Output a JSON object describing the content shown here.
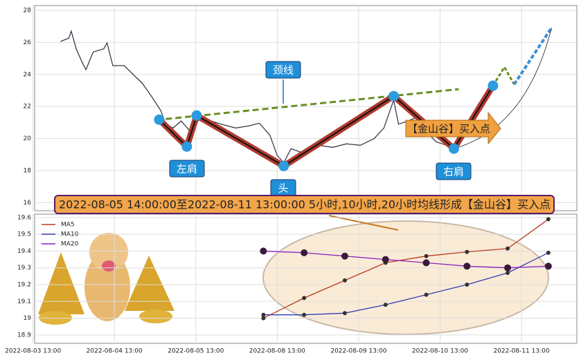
{
  "chart_data": [
    {
      "type": "line",
      "ylim": [
        15.5,
        28.3
      ],
      "yticks": [
        16,
        18,
        20,
        22,
        24,
        26,
        28
      ],
      "xlim": [
        0.02,
        6.68
      ],
      "xticks": [
        0,
        1,
        2,
        3,
        4,
        5,
        6
      ],
      "grid": true,
      "series": [
        {
          "color": "#3a3a4a",
          "x": [
            0.34,
            0.44,
            0.47,
            0.53,
            0.6,
            0.65,
            0.74,
            0.87,
            0.91,
            0.98,
            1.12,
            1.25,
            1.34,
            1.46,
            1.57,
            1.63,
            1.72,
            1.82,
            1.93,
            2.06,
            2.19,
            2.31,
            2.49,
            2.66,
            2.78,
            2.91,
            3.0,
            3.08,
            3.17,
            3.34,
            3.51,
            3.68,
            3.85,
            4.02,
            4.19,
            4.31,
            4.43,
            4.49,
            4.61,
            4.7,
            4.83,
            4.95,
            5.08,
            5.17,
            5.25
          ],
          "values": [
            26.06,
            26.27,
            26.7,
            25.6,
            24.8,
            24.3,
            25.4,
            25.6,
            25.97,
            24.55,
            24.55,
            23.9,
            23.47,
            22.6,
            21.74,
            20.9,
            20.66,
            21.1,
            20.45,
            21.3,
            21.1,
            20.9,
            20.66,
            20.8,
            20.96,
            20.2,
            18.94,
            18.5,
            19.37,
            19.06,
            19.58,
            19.45,
            19.67,
            19.58,
            20.0,
            20.66,
            22.4,
            20.9,
            21.1,
            21.3,
            20.45,
            19.8,
            19.58,
            19.37,
            20.45
          ]
        }
      ],
      "pattern": {
        "x": [
          1.55,
          1.89,
          2.01,
          3.08,
          4.43,
          5.17,
          5.65
        ],
        "values": [
          21.18,
          19.5,
          21.44,
          18.29,
          22.65,
          19.37,
          23.3
        ]
      },
      "neckline": {
        "x": [
          1.63,
          5.23
        ],
        "values": [
          21.22,
          23.08
        ]
      },
      "projection": {
        "x": [
          5.65,
          5.79,
          5.91,
          6.37
        ],
        "values": [
          23.3,
          24.46,
          23.38,
          26.92
        ]
      },
      "annotations": [
        "颈线",
        "左肩",
        "头",
        "右肩",
        "【金山谷】买入点"
      ],
      "banner": "2022-08-05 14:00:00至2022-08-11 13:00:00 5小时,10小时,20小时均线形成【金山谷】买入点"
    },
    {
      "type": "line",
      "ylim": [
        18.85,
        19.62
      ],
      "yticks": [
        18.9,
        19.0,
        19.1,
        19.2,
        19.3,
        19.4,
        19.5,
        19.6
      ],
      "xlim": [
        0.02,
        6.68
      ],
      "grid": true,
      "legend": "upper left",
      "xticks": [
        {
          "value": 0,
          "label": "2022-08-03 13:00"
        },
        {
          "value": 1,
          "label": "2022-08-04 13:00"
        },
        {
          "value": 2,
          "label": "2022-08-05 13:00"
        },
        {
          "value": 3,
          "label": "2022-08-08 13:00"
        },
        {
          "value": 4,
          "label": "2022-08-09 13:00"
        },
        {
          "value": 5,
          "label": "2022-08-10 13:00"
        },
        {
          "value": 6,
          "label": "2022-08-11 13:00"
        }
      ],
      "x": [
        2.83,
        3.33,
        3.83,
        4.33,
        4.83,
        5.33,
        5.83,
        6.33
      ],
      "series": [
        {
          "name": "MA5",
          "color": "#b83a1e",
          "values": [
            19.0,
            19.12,
            19.225,
            19.33,
            19.37,
            19.395,
            19.415,
            19.59
          ]
        },
        {
          "name": "MA10",
          "color": "#2e3bb0",
          "values": [
            19.02,
            19.02,
            19.03,
            19.08,
            19.14,
            19.2,
            19.27,
            19.39
          ]
        },
        {
          "name": "MA20",
          "color": "#8a1fc0",
          "values": [
            19.4,
            19.39,
            19.37,
            19.35,
            19.33,
            19.31,
            19.3,
            19.31
          ]
        }
      ]
    }
  ]
}
